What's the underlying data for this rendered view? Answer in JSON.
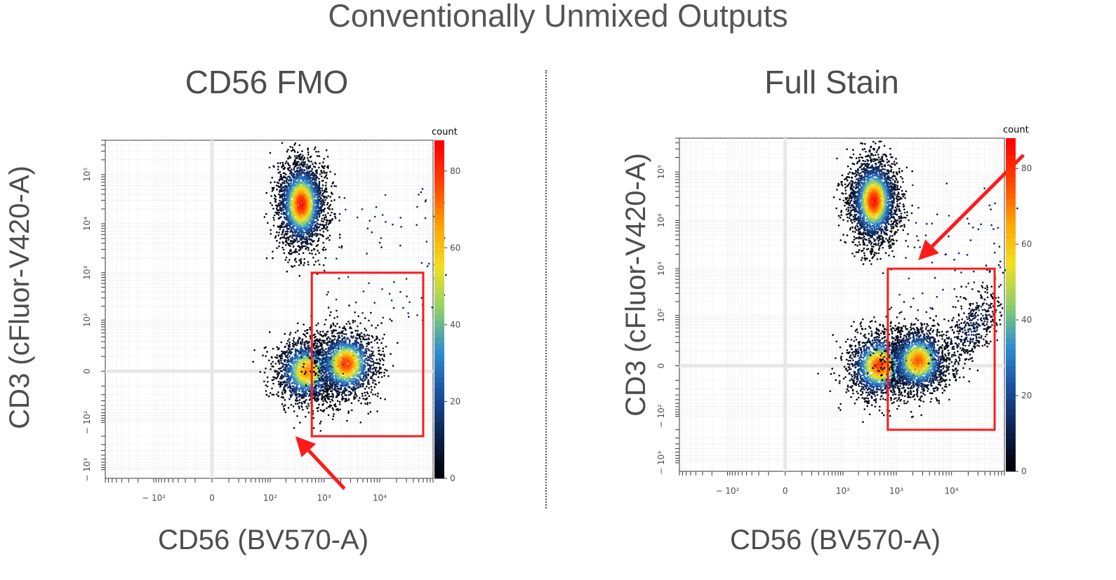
{
  "title": "Conventionally Unmixed Outputs",
  "colors": {
    "gate": "#ff1a1a",
    "arrow": "#ff1a1a",
    "plot_bg": "#ffffff",
    "colormap": [
      "#000004",
      "#0d2350",
      "#1a4fa0",
      "#2f8fd0",
      "#8fcf6a",
      "#f0e020",
      "#ffa500",
      "#ff4500",
      "#ff0000"
    ]
  },
  "chart_data": [
    {
      "type": "scatter",
      "title": "CD56 FMO",
      "xlabel": "CD56 (BV570-A)",
      "ylabel": "CD3 (cFluor-V420-A)",
      "x_scale": "biexponential",
      "y_scale": "biexponential",
      "x_tick_labels": [
        "− 10²",
        "0",
        "10²",
        "10³",
        "10⁴"
      ],
      "y_tick_labels": [
        "− 10³",
        "− 10²",
        "0",
        "10²",
        "10³",
        "10⁴",
        "10⁵"
      ],
      "colorbar": {
        "label": "count",
        "min": 0,
        "max": 88,
        "ticks": [
          "0",
          "20",
          "40",
          "60",
          "80"
        ]
      },
      "populations": [
        {
          "name": "",
          "x_center_log": 1.6,
          "y_center_log": 3.4,
          "peak_count": 85
        },
        {
          "name": "",
          "x_center_log": 1.7,
          "y_center_log": 0.0,
          "peak_count": 70
        },
        {
          "name": "",
          "x_center_log": 2.4,
          "y_center_log": 0.15,
          "peak_count": 80
        }
      ],
      "gate": {
        "x_range": [
          600,
          60000
        ],
        "y_range": [
          -200,
          1000
        ]
      },
      "arrow": {
        "points_to": [
          300,
          -200
        ]
      }
    },
    {
      "type": "scatter",
      "title": "Full Stain",
      "xlabel": "CD56 (BV570-A)",
      "ylabel": "CD3 (cFluor-V420-A)",
      "x_scale": "biexponential",
      "y_scale": "biexponential",
      "x_tick_labels": [
        "− 10²",
        "0",
        "10²",
        "10³",
        "10⁴"
      ],
      "y_tick_labels": [
        "− 10³",
        "− 10²",
        "0",
        "10²",
        "10³",
        "10⁴",
        "10⁵"
      ],
      "colorbar": {
        "label": "count",
        "min": 0,
        "max": 88,
        "ticks": [
          "0",
          "20",
          "40",
          "60",
          "80"
        ]
      },
      "populations": [
        {
          "name": "",
          "x_center_log": 1.6,
          "y_center_log": 3.4,
          "peak_count": 85
        },
        {
          "name": "",
          "x_center_log": 1.7,
          "y_center_log": 0.0,
          "peak_count": 80
        },
        {
          "name": "",
          "x_center_log": 2.4,
          "y_center_log": 0.1,
          "peak_count": 75
        },
        {
          "name": "",
          "x_center_log": 3.4,
          "y_center_log": 0.8,
          "peak_count": 10
        }
      ],
      "gate": {
        "x_range": [
          700,
          60000
        ],
        "y_range": [
          -200,
          1000
        ]
      },
      "arrow": {
        "points_to": [
          2500,
          1500
        ]
      }
    }
  ]
}
